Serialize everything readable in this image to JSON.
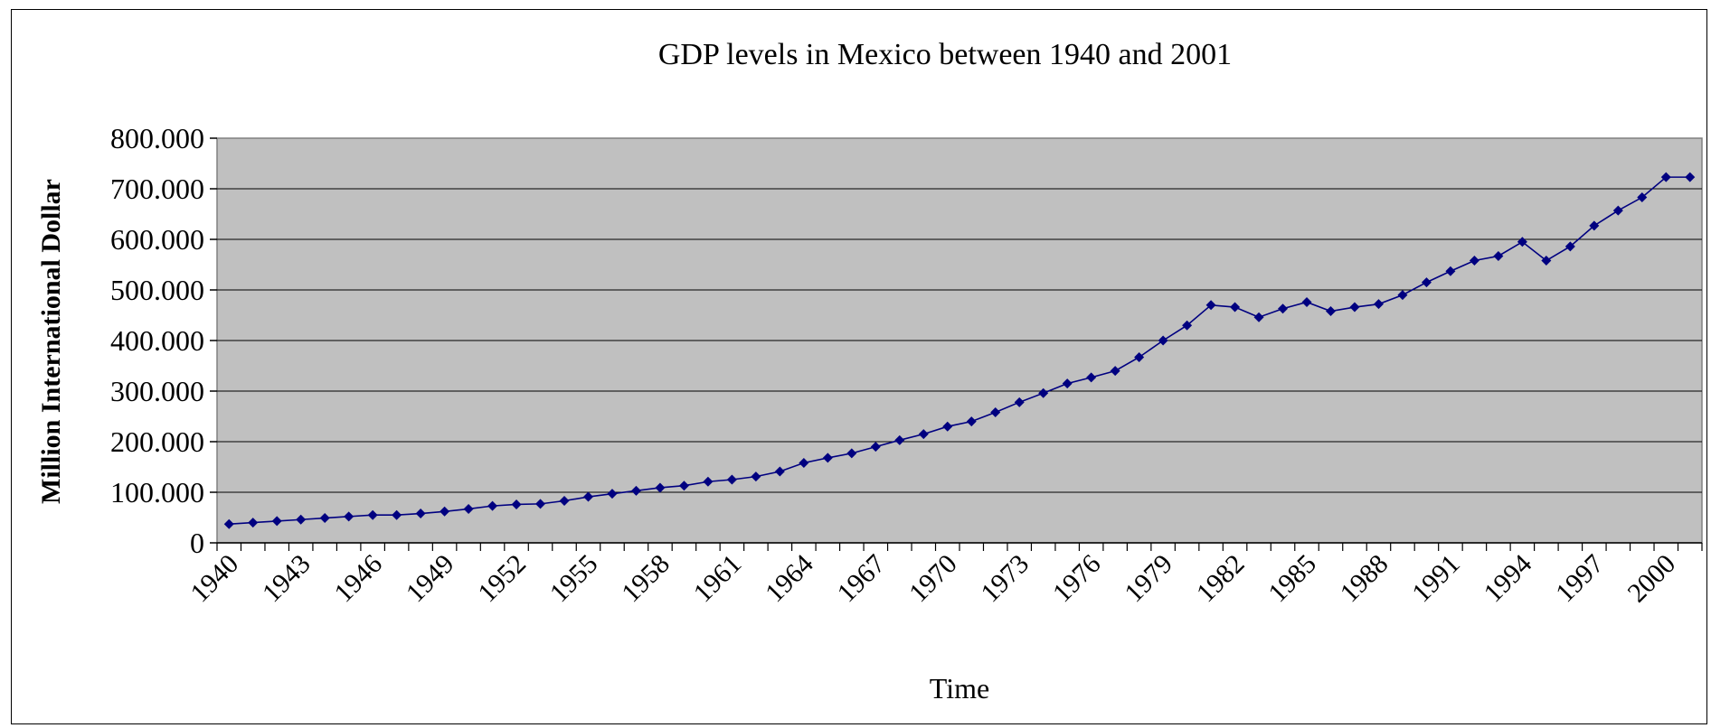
{
  "chart_data": {
    "type": "line",
    "title": "GDP levels in Mexico between 1940 and 2001",
    "xlabel": "Time",
    "ylabel": "Million International Dollar",
    "ylim": [
      0,
      800000
    ],
    "yticks": [
      0,
      100000,
      200000,
      300000,
      400000,
      500000,
      600000,
      700000,
      800000
    ],
    "ytick_labels": [
      "0",
      "100.000",
      "200.000",
      "300.000",
      "400.000",
      "500.000",
      "600.000",
      "700.000",
      "800.000"
    ],
    "xtick_labels": [
      "1940",
      "1943",
      "1946",
      "1949",
      "1952",
      "1955",
      "1958",
      "1961",
      "1964",
      "1967",
      "1970",
      "1973",
      "1976",
      "1979",
      "1982",
      "1985",
      "1988",
      "1991",
      "1994",
      "1997",
      "2000"
    ],
    "grid": true,
    "legend": "none",
    "colors": {
      "series": "#000080",
      "plot_background": "#c0c0c0",
      "gridline": "#000000"
    },
    "series": [
      {
        "x": [
          1940,
          1941,
          1942,
          1943,
          1944,
          1945,
          1946,
          1947,
          1948,
          1949,
          1950,
          1951,
          1952,
          1953,
          1954,
          1955,
          1956,
          1957,
          1958,
          1959,
          1960,
          1961,
          1962,
          1963,
          1964,
          1965,
          1966,
          1967,
          1968,
          1969,
          1970,
          1971,
          1972,
          1973,
          1974,
          1975,
          1976,
          1977,
          1978,
          1979,
          1980,
          1981,
          1982,
          1983,
          1984,
          1985,
          1986,
          1987,
          1988,
          1989,
          1990,
          1991,
          1992,
          1993,
          1994,
          1995,
          1996,
          1997,
          1998,
          1999,
          2000,
          2001
        ],
        "values": [
          37000,
          40000,
          43000,
          46000,
          49000,
          52000,
          55000,
          55000,
          58000,
          62000,
          67000,
          73000,
          76000,
          77000,
          83000,
          91000,
          97000,
          103000,
          109000,
          113000,
          121000,
          125000,
          131000,
          141000,
          158000,
          168000,
          177000,
          190000,
          203000,
          215000,
          230000,
          240000,
          258000,
          278000,
          296000,
          315000,
          327000,
          340000,
          367000,
          400000,
          430000,
          470000,
          466000,
          446000,
          463000,
          476000,
          458000,
          466000,
          472000,
          490000,
          515000,
          537000,
          558000,
          567000,
          595000,
          558000,
          586000,
          627000,
          657000,
          683000,
          723000,
          723000
        ]
      }
    ]
  }
}
